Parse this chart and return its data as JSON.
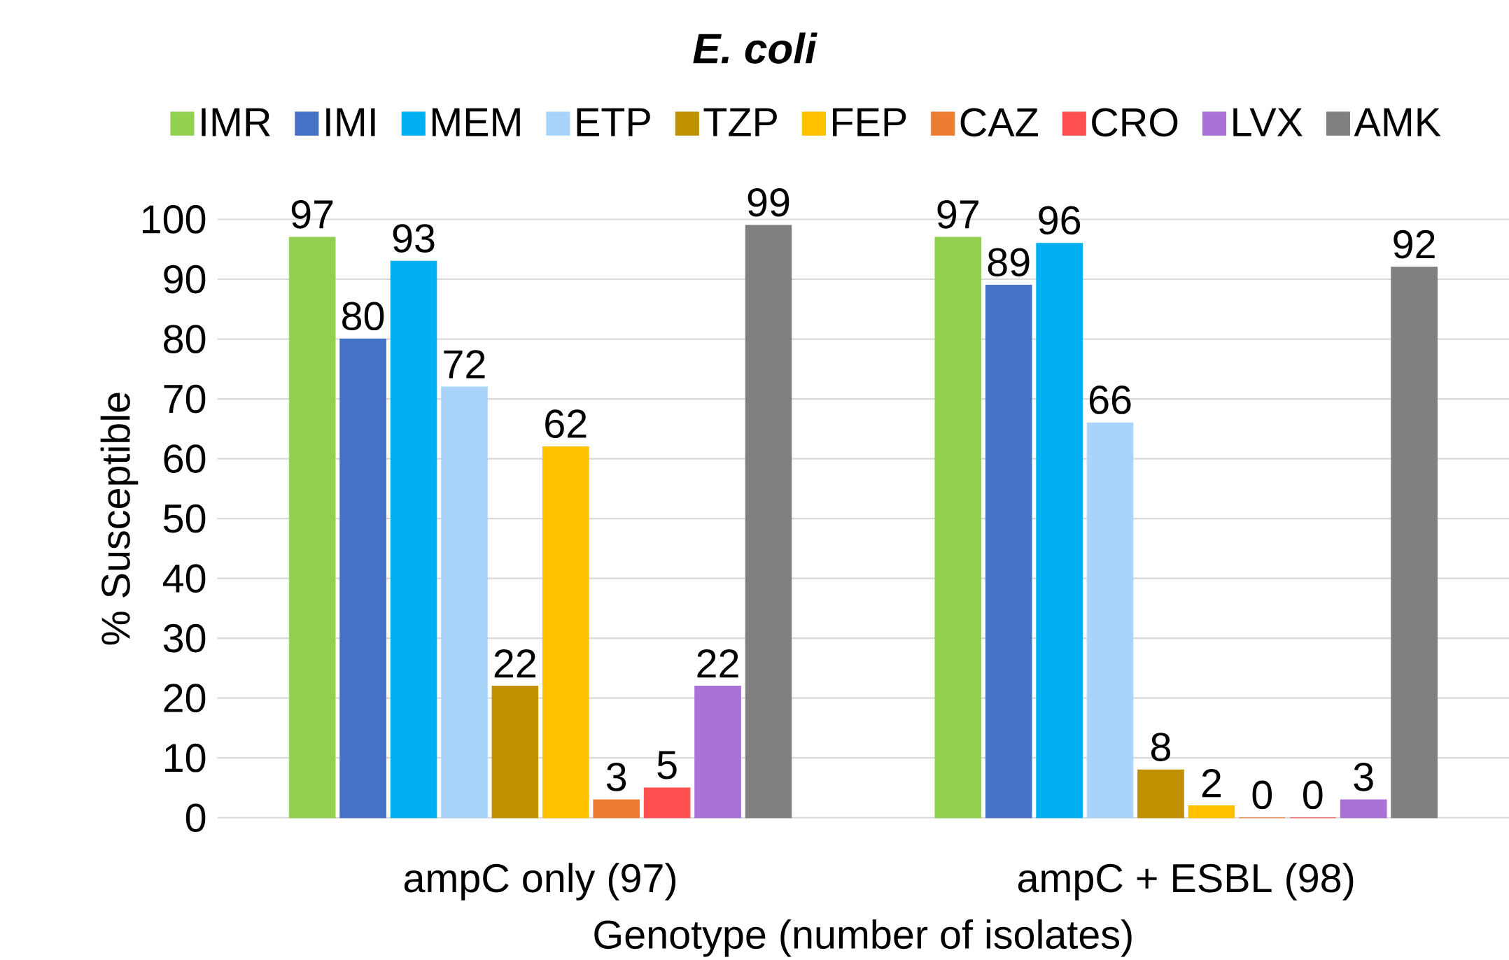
{
  "chart_data": {
    "type": "bar",
    "title": "E. coli",
    "xlabel": "Genotype (number of isolates)",
    "ylabel": "% Susceptible",
    "categories": [
      "ampC only (97)",
      "ampC + ESBL (98)"
    ],
    "series": [
      {
        "name": "IMR",
        "color": "#92d050",
        "values": [
          97,
          97
        ]
      },
      {
        "name": "IMI",
        "color": "#4472c4",
        "values": [
          80,
          89
        ]
      },
      {
        "name": "MEM",
        "color": "#00b0f0",
        "values": [
          93,
          96
        ]
      },
      {
        "name": "ETP",
        "color": "#a9d4f9",
        "values": [
          72,
          66
        ]
      },
      {
        "name": "TZP",
        "color": "#bf9000",
        "values": [
          22,
          8
        ]
      },
      {
        "name": "FEP",
        "color": "#ffc000",
        "values": [
          62,
          2
        ]
      },
      {
        "name": "CAZ",
        "color": "#ed7d31",
        "values": [
          3,
          0
        ]
      },
      {
        "name": "CRO",
        "color": "#ff5050",
        "values": [
          5,
          0
        ]
      },
      {
        "name": "LVX",
        "color": "#a970d6",
        "values": [
          22,
          3
        ]
      },
      {
        "name": "AMK",
        "color": "#808080",
        "values": [
          99,
          92
        ]
      }
    ],
    "ylim": [
      0,
      100
    ],
    "yticks": [
      0,
      10,
      20,
      30,
      40,
      50,
      60,
      70,
      80,
      90,
      100
    ],
    "grid": "y",
    "legend": "top",
    "data_labels": true
  }
}
